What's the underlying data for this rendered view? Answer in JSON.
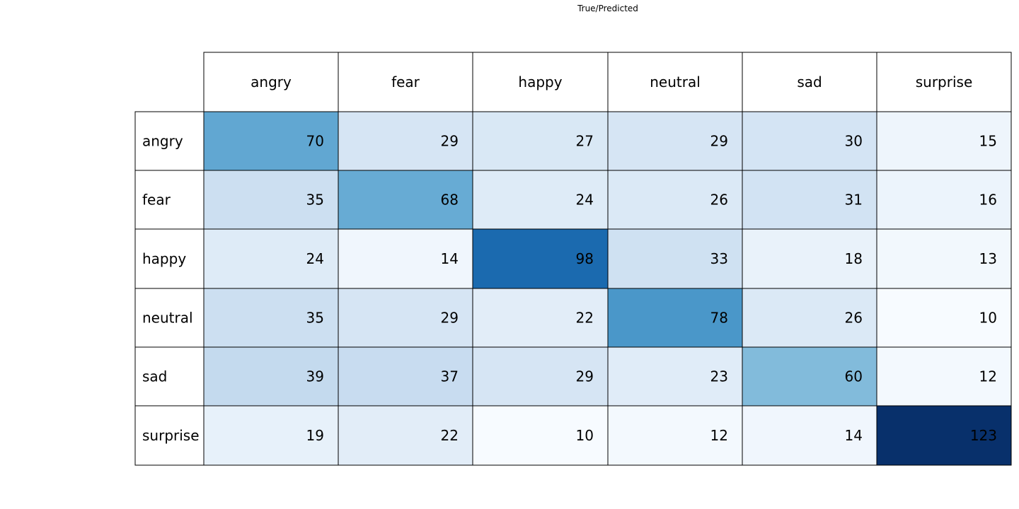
{
  "chart_data": {
    "type": "heatmap",
    "title": "True/Predicted",
    "column_labels": [
      "angry",
      "fear",
      "happy",
      "neutral",
      "sad",
      "surprise"
    ],
    "row_labels": [
      "angry",
      "fear",
      "happy",
      "neutral",
      "sad",
      "surprise"
    ],
    "values": [
      [
        70,
        29,
        27,
        29,
        30,
        15
      ],
      [
        35,
        68,
        24,
        26,
        31,
        16
      ],
      [
        24,
        14,
        98,
        33,
        18,
        13
      ],
      [
        35,
        29,
        22,
        78,
        26,
        10
      ],
      [
        39,
        37,
        29,
        23,
        60,
        12
      ],
      [
        19,
        22,
        10,
        12,
        14,
        123
      ]
    ],
    "value_range": [
      10,
      123
    ],
    "colormap": "Blues",
    "colormap_stops": [
      "#f7fbff",
      "#deebf7",
      "#c6dbef",
      "#9ecae1",
      "#6baed6",
      "#4292c6",
      "#2171b5",
      "#08519c",
      "#08306b"
    ],
    "text_color": "#000000",
    "grid_color": "#000000"
  }
}
